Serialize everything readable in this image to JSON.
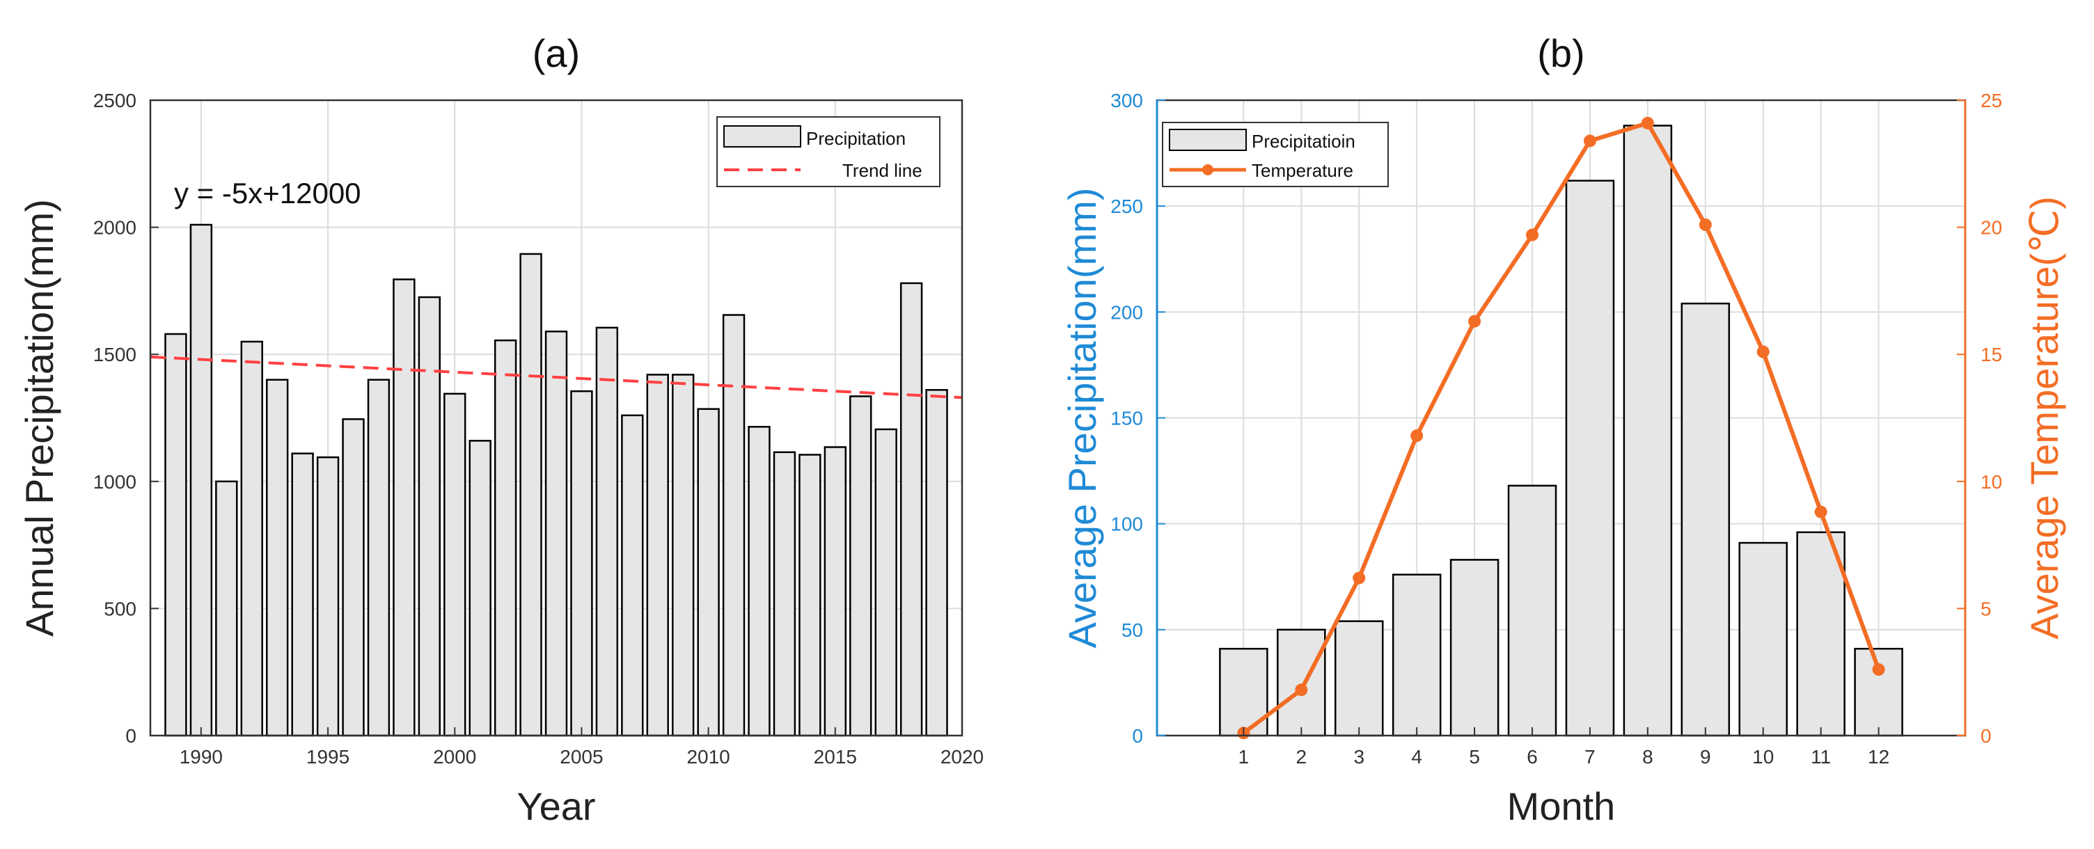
{
  "colors": {
    "bar_fill": "#e6e6e6",
    "bar_stroke": "#000000",
    "trend": "#ff4040",
    "temp": "#f36d25",
    "precip_axis": "#1f8ad6",
    "grid": "#dcdcdc"
  },
  "chart_data": [
    {
      "type": "bar",
      "title": "(a)",
      "xlabel": "Year",
      "ylabel": "Annual Precipitation(mm)",
      "xlim": [
        1988,
        2020
      ],
      "ylim": [
        0,
        2500
      ],
      "xticks": [
        1990,
        1995,
        2000,
        2005,
        2010,
        2015,
        2020
      ],
      "yticks": [
        0,
        500,
        1000,
        1500,
        2000,
        2500
      ],
      "grid": true,
      "legend_position": "top-right",
      "x": [
        1989,
        1990,
        1991,
        1992,
        1993,
        1994,
        1995,
        1996,
        1997,
        1998,
        1999,
        2000,
        2001,
        2002,
        2003,
        2004,
        2005,
        2006,
        2007,
        2008,
        2009,
        2010,
        2011,
        2012,
        2013,
        2014,
        2015,
        2016,
        2017,
        2018,
        2019
      ],
      "series": [
        {
          "name": "Precipitation",
          "values": [
            1580,
            2010,
            1000,
            1550,
            1400,
            1110,
            1095,
            1245,
            1400,
            1795,
            1725,
            1345,
            1160,
            1555,
            1895,
            1590,
            1355,
            1605,
            1260,
            1420,
            1420,
            1285,
            1655,
            1215,
            1115,
            1105,
            1135,
            1335,
            1205,
            1780,
            1360
          ]
        },
        {
          "name": "Trend line",
          "type": "line",
          "style": "dashed",
          "x": [
            1988,
            2020
          ],
          "values": [
            1490,
            1330
          ]
        }
      ],
      "annotation": "y = -5x+12000"
    },
    {
      "type": "bar",
      "title": "(b)",
      "xlabel": "Month",
      "ylabel": "Average Precipitation(mm)",
      "y2label": "Average Temperature(℃)",
      "categories": [
        "1",
        "2",
        "3",
        "4",
        "5",
        "6",
        "7",
        "8",
        "9",
        "10",
        "11",
        "12"
      ],
      "ylim": [
        0,
        300
      ],
      "y2lim": [
        0,
        25
      ],
      "yticks": [
        0,
        50,
        100,
        150,
        200,
        250,
        300
      ],
      "y2ticks": [
        0,
        5,
        10,
        15,
        20,
        25
      ],
      "grid": true,
      "legend_position": "top-left",
      "series": [
        {
          "name": "Precipitatioin",
          "type": "bar",
          "axis": "left",
          "values": [
            41,
            50,
            54,
            76,
            83,
            118,
            262,
            288,
            204,
            91,
            96,
            41
          ]
        },
        {
          "name": "Temperature",
          "type": "line",
          "axis": "right",
          "values": [
            0.1,
            1.8,
            6.2,
            11.8,
            16.3,
            19.7,
            23.4,
            24.1,
            20.1,
            15.1,
            8.8,
            2.6
          ]
        }
      ]
    }
  ]
}
